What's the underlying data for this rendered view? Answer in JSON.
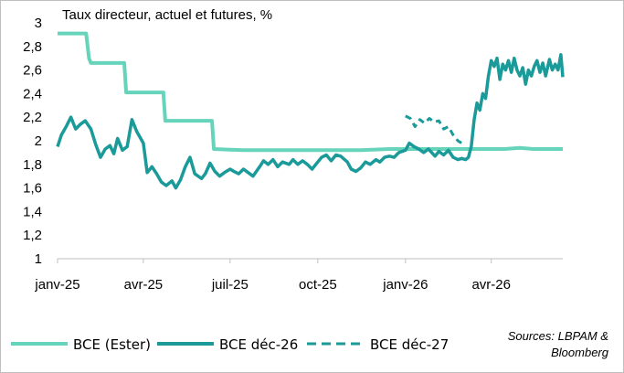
{
  "chart_data": {
    "type": "line",
    "title": "Taux directeur, actuel et futures, %",
    "xlabel": "",
    "ylabel": "",
    "ylim": [
      1,
      3
    ],
    "y_ticks": [
      "1",
      "1,2",
      "1,4",
      "1,6",
      "1,8",
      "2",
      "2,2",
      "2,4",
      "2,6",
      "2,8",
      "3"
    ],
    "x_range": [
      "2025-01-01",
      "2026-06-15"
    ],
    "x_ticks": [
      {
        "date": "2025-01-01",
        "label": "janv-25"
      },
      {
        "date": "2025-04-01",
        "label": "avr-25"
      },
      {
        "date": "2025-07-01",
        "label": "juil-25"
      },
      {
        "date": "2025-10-01",
        "label": "oct-25"
      },
      {
        "date": "2026-01-01",
        "label": "janv-26"
      },
      {
        "date": "2026-04-01",
        "label": "avr-26"
      }
    ],
    "grid": false,
    "legend_position": "bottom",
    "source": "Sources: LBPAM & Bloomberg",
    "series": [
      {
        "name": "BCE (Ester)",
        "color": "#66d4bb",
        "style": "solid",
        "x": [
          "2025-01-01",
          "2025-01-31",
          "2025-02-03",
          "2025-02-05",
          "2025-03-12",
          "2025-03-14",
          "2025-04-22",
          "2025-04-24",
          "2025-06-10",
          "2025-06-12",
          "2025-06-14",
          "2025-07-15",
          "2025-08-15",
          "2025-09-15",
          "2025-10-15",
          "2025-11-15",
          "2025-12-15",
          "2026-01-15",
          "2026-02-01",
          "2026-02-15",
          "2026-03-01",
          "2026-03-15",
          "2026-04-01",
          "2026-04-15",
          "2026-05-01",
          "2026-05-15",
          "2026-06-01",
          "2026-06-15"
        ],
        "values": [
          2.91,
          2.91,
          2.7,
          2.66,
          2.66,
          2.41,
          2.41,
          2.17,
          2.17,
          2.17,
          1.93,
          1.92,
          1.92,
          1.92,
          1.92,
          1.92,
          1.93,
          1.93,
          1.93,
          1.93,
          1.93,
          1.93,
          1.93,
          1.93,
          1.94,
          1.93,
          1.93,
          1.93
        ]
      },
      {
        "name": "BCE déc-26",
        "color": "#1a9a98",
        "style": "solid",
        "x": [
          "2025-01-01",
          "2025-01-05",
          "2025-01-10",
          "2025-01-15",
          "2025-01-20",
          "2025-01-25",
          "2025-01-30",
          "2025-02-05",
          "2025-02-10",
          "2025-02-15",
          "2025-02-20",
          "2025-02-25",
          "2025-03-01",
          "2025-03-05",
          "2025-03-10",
          "2025-03-15",
          "2025-03-20",
          "2025-03-25",
          "2025-04-01",
          "2025-04-05",
          "2025-04-10",
          "2025-04-15",
          "2025-04-20",
          "2025-04-25",
          "2025-05-01",
          "2025-05-05",
          "2025-05-10",
          "2025-05-15",
          "2025-05-20",
          "2025-05-25",
          "2025-06-01",
          "2025-06-05",
          "2025-06-10",
          "2025-06-15",
          "2025-06-20",
          "2025-06-25",
          "2025-07-01",
          "2025-07-05",
          "2025-07-10",
          "2025-07-15",
          "2025-07-20",
          "2025-07-25",
          "2025-08-01",
          "2025-08-05",
          "2025-08-10",
          "2025-08-15",
          "2025-08-20",
          "2025-08-25",
          "2025-09-01",
          "2025-09-05",
          "2025-09-10",
          "2025-09-15",
          "2025-09-20",
          "2025-09-25",
          "2025-10-01",
          "2025-10-05",
          "2025-10-10",
          "2025-10-15",
          "2025-10-20",
          "2025-10-25",
          "2025-11-01",
          "2025-11-05",
          "2025-11-10",
          "2025-11-15",
          "2025-11-20",
          "2025-11-25",
          "2025-12-01",
          "2025-12-05",
          "2025-12-10",
          "2025-12-15",
          "2025-12-20",
          "2025-12-25",
          "2026-01-01",
          "2026-01-05",
          "2026-01-10",
          "2026-01-15",
          "2026-01-20",
          "2026-01-25",
          "2026-02-01",
          "2026-02-05",
          "2026-02-10",
          "2026-02-15",
          "2026-02-20",
          "2026-02-25",
          "2026-03-01",
          "2026-03-05",
          "2026-03-08",
          "2026-03-11",
          "2026-03-14",
          "2026-03-17",
          "2026-03-20",
          "2026-03-23",
          "2026-03-26",
          "2026-03-29",
          "2026-04-01",
          "2026-04-04",
          "2026-04-07",
          "2026-04-10",
          "2026-04-13",
          "2026-04-16",
          "2026-04-19",
          "2026-04-22",
          "2026-04-25",
          "2026-04-28",
          "2026-05-01",
          "2026-05-04",
          "2026-05-07",
          "2026-05-10",
          "2026-05-13",
          "2026-05-16",
          "2026-05-19",
          "2026-05-22",
          "2026-05-25",
          "2026-05-28",
          "2026-06-01",
          "2026-06-04",
          "2026-06-07",
          "2026-06-10",
          "2026-06-13",
          "2026-06-15"
        ],
        "values": [
          1.95,
          2.05,
          2.12,
          2.2,
          2.1,
          2.14,
          2.17,
          2.1,
          1.97,
          1.86,
          1.93,
          1.96,
          1.89,
          2.02,
          1.92,
          1.95,
          2.18,
          2.08,
          1.98,
          1.73,
          1.78,
          1.72,
          1.65,
          1.62,
          1.66,
          1.6,
          1.67,
          1.78,
          1.86,
          1.72,
          1.68,
          1.72,
          1.81,
          1.74,
          1.7,
          1.73,
          1.76,
          1.74,
          1.72,
          1.76,
          1.73,
          1.7,
          1.78,
          1.83,
          1.8,
          1.84,
          1.78,
          1.82,
          1.8,
          1.84,
          1.8,
          1.83,
          1.8,
          1.76,
          1.82,
          1.86,
          1.88,
          1.83,
          1.88,
          1.87,
          1.82,
          1.76,
          1.74,
          1.77,
          1.82,
          1.8,
          1.84,
          1.82,
          1.86,
          1.87,
          1.86,
          1.9,
          1.92,
          1.98,
          1.95,
          1.93,
          1.9,
          1.93,
          1.87,
          1.91,
          1.88,
          1.92,
          1.86,
          1.84,
          1.85,
          1.84,
          1.86,
          1.95,
          2.18,
          2.32,
          2.26,
          2.4,
          2.36,
          2.55,
          2.68,
          2.63,
          2.7,
          2.52,
          2.65,
          2.6,
          2.68,
          2.58,
          2.7,
          2.6,
          2.55,
          2.62,
          2.48,
          2.6,
          2.55,
          2.63,
          2.68,
          2.58,
          2.66,
          2.55,
          2.69,
          2.6,
          2.65,
          2.6,
          2.73,
          2.54
        ]
      },
      {
        "name": "BCE déc-27",
        "color": "#1a9a98",
        "style": "dashed",
        "x": [
          "2026-01-01",
          "2026-01-06",
          "2026-01-11",
          "2026-01-16",
          "2026-01-21",
          "2026-01-26",
          "2026-01-31",
          "2026-02-05",
          "2026-02-10",
          "2026-02-15",
          "2026-02-20",
          "2026-02-25",
          "2026-03-01",
          "2026-03-05"
        ],
        "values": [
          2.21,
          2.19,
          2.12,
          2.18,
          2.15,
          2.19,
          2.16,
          2.17,
          2.1,
          2.12,
          2.05,
          2.0,
          1.98,
          1.97
        ]
      }
    ]
  }
}
